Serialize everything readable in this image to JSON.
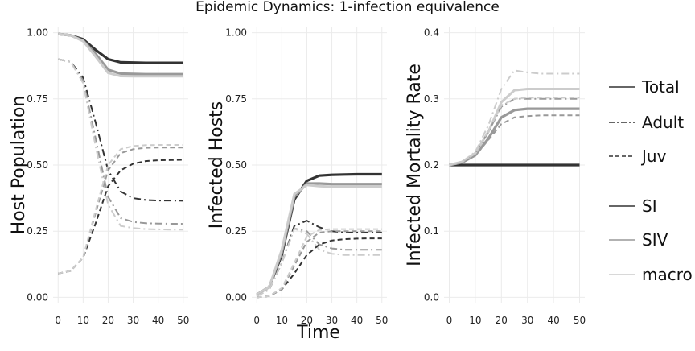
{
  "chart_data": {
    "type": "line",
    "title": "Epidemic Dynamics: 1-infection equivalence",
    "xlabel": "Time",
    "x_ticks": [
      0,
      10,
      20,
      30,
      40,
      50
    ],
    "xlim": [
      -2,
      52
    ],
    "legend": {
      "placement": "right",
      "linetype_entries": [
        {
          "label": "Total",
          "dash": "solid"
        },
        {
          "label": "Adult",
          "dash": "dashdot"
        },
        {
          "label": "Juv",
          "dash": "dashed"
        }
      ],
      "model_entries": [
        {
          "label": "SI",
          "color": "#333333"
        },
        {
          "label": "SIV",
          "color": "#999999"
        },
        {
          "label": "macro",
          "color": "#cccccc"
        }
      ]
    },
    "panels": [
      {
        "ylabel": "Host Population",
        "ylim": [
          -0.02,
          1.02
        ],
        "y_ticks": [
          0.0,
          0.25,
          0.5,
          0.75,
          1.0
        ],
        "y_tick_labels": [
          "0.00",
          "0.25",
          "0.50",
          "0.75",
          "1.00"
        ],
        "series": [
          {
            "model": "SI",
            "type": "Total",
            "x": [
              0,
              5,
              10,
              15,
              20,
              25,
              30,
              35,
              40,
              45,
              50
            ],
            "y": [
              0.995,
              0.99,
              0.975,
              0.935,
              0.9,
              0.888,
              0.887,
              0.886,
              0.886,
              0.886,
              0.886
            ]
          },
          {
            "model": "SIV",
            "type": "Total",
            "x": [
              0,
              5,
              10,
              15,
              20,
              25,
              30,
              35,
              40,
              45,
              50
            ],
            "y": [
              0.995,
              0.99,
              0.97,
              0.92,
              0.86,
              0.845,
              0.844,
              0.843,
              0.843,
              0.843,
              0.843
            ]
          },
          {
            "model": "macro",
            "type": "Total",
            "x": [
              0,
              5,
              10,
              15,
              20,
              25,
              30,
              35,
              40,
              45,
              50
            ],
            "y": [
              0.995,
              0.99,
              0.968,
              0.91,
              0.848,
              0.836,
              0.835,
              0.835,
              0.835,
              0.835,
              0.835
            ]
          },
          {
            "model": "SI",
            "type": "Adult",
            "x": [
              0,
              5,
              10,
              15,
              20,
              25,
              30,
              35,
              40,
              45,
              50
            ],
            "y": [
              0.9,
              0.89,
              0.83,
              0.66,
              0.48,
              0.4,
              0.375,
              0.368,
              0.366,
              0.366,
              0.365
            ]
          },
          {
            "model": "SIV",
            "type": "Adult",
            "x": [
              0,
              5,
              10,
              15,
              20,
              25,
              30,
              35,
              40,
              45,
              50
            ],
            "y": [
              0.9,
              0.89,
              0.82,
              0.6,
              0.38,
              0.3,
              0.285,
              0.28,
              0.279,
              0.278,
              0.278
            ]
          },
          {
            "model": "macro",
            "type": "Adult",
            "x": [
              0,
              5,
              10,
              15,
              20,
              25,
              30,
              35,
              40,
              45,
              50
            ],
            "y": [
              0.9,
              0.89,
              0.81,
              0.57,
              0.35,
              0.27,
              0.262,
              0.258,
              0.257,
              0.256,
              0.256
            ]
          },
          {
            "model": "SI",
            "type": "Juv",
            "x": [
              0,
              5,
              10,
              15,
              20,
              25,
              30,
              35,
              40,
              45,
              50
            ],
            "y": [
              0.09,
              0.1,
              0.15,
              0.28,
              0.42,
              0.48,
              0.505,
              0.515,
              0.518,
              0.519,
              0.52
            ]
          },
          {
            "model": "SIV",
            "type": "Juv",
            "x": [
              0,
              5,
              10,
              15,
              20,
              25,
              30,
              35,
              40,
              45,
              50
            ],
            "y": [
              0.09,
              0.1,
              0.15,
              0.32,
              0.48,
              0.545,
              0.56,
              0.565,
              0.566,
              0.566,
              0.566
            ]
          },
          {
            "model": "macro",
            "type": "Juv",
            "x": [
              0,
              5,
              10,
              15,
              20,
              25,
              30,
              35,
              40,
              45,
              50
            ],
            "y": [
              0.09,
              0.1,
              0.15,
              0.33,
              0.5,
              0.56,
              0.572,
              0.575,
              0.576,
              0.576,
              0.576
            ]
          }
        ]
      },
      {
        "ylabel": "Infected Hosts",
        "ylim": [
          -0.02,
          1.02
        ],
        "y_ticks": [
          0.0,
          0.25,
          0.5,
          0.75,
          1.0
        ],
        "y_tick_labels": [
          "0.00",
          "0.25",
          "0.50",
          "0.75",
          "1.00"
        ],
        "series": [
          {
            "model": "SI",
            "type": "Total",
            "x": [
              0,
              5,
              10,
              15,
              20,
              25,
              30,
              35,
              40,
              45,
              50
            ],
            "y": [
              0.01,
              0.04,
              0.16,
              0.37,
              0.44,
              0.46,
              0.463,
              0.464,
              0.465,
              0.465,
              0.465
            ]
          },
          {
            "model": "SIV",
            "type": "Total",
            "x": [
              0,
              5,
              10,
              15,
              20,
              25,
              30,
              35,
              40,
              45,
              50
            ],
            "y": [
              0.01,
              0.04,
              0.17,
              0.38,
              0.43,
              0.43,
              0.428,
              0.428,
              0.428,
              0.428,
              0.428
            ]
          },
          {
            "model": "macro",
            "type": "Total",
            "x": [
              0,
              5,
              10,
              15,
              20,
              25,
              30,
              35,
              40,
              45,
              50
            ],
            "y": [
              0.01,
              0.04,
              0.18,
              0.39,
              0.425,
              0.42,
              0.418,
              0.418,
              0.418,
              0.418,
              0.418
            ]
          },
          {
            "model": "SI",
            "type": "Adult",
            "x": [
              0,
              5,
              10,
              15,
              20,
              25,
              30,
              35,
              40,
              45,
              50
            ],
            "y": [
              0.005,
              0.03,
              0.13,
              0.27,
              0.29,
              0.265,
              0.25,
              0.245,
              0.245,
              0.245,
              0.245
            ]
          },
          {
            "model": "SIV",
            "type": "Adult",
            "x": [
              0,
              5,
              10,
              15,
              20,
              25,
              30,
              35,
              40,
              45,
              50
            ],
            "y": [
              0.005,
              0.03,
              0.13,
              0.26,
              0.25,
              0.2,
              0.185,
              0.18,
              0.18,
              0.18,
              0.18
            ]
          },
          {
            "model": "macro",
            "type": "Adult",
            "x": [
              0,
              5,
              10,
              15,
              20,
              25,
              30,
              35,
              40,
              45,
              50
            ],
            "y": [
              0.005,
              0.03,
              0.13,
              0.26,
              0.24,
              0.18,
              0.165,
              0.16,
              0.16,
              0.16,
              0.16
            ]
          },
          {
            "model": "SI",
            "type": "Juv",
            "x": [
              0,
              5,
              10,
              15,
              20,
              25,
              30,
              35,
              40,
              45,
              50
            ],
            "y": [
              0.0,
              0.005,
              0.03,
              0.09,
              0.16,
              0.2,
              0.215,
              0.22,
              0.222,
              0.223,
              0.223
            ]
          },
          {
            "model": "SIV",
            "type": "Juv",
            "x": [
              0,
              5,
              10,
              15,
              20,
              25,
              30,
              35,
              40,
              45,
              50
            ],
            "y": [
              0.0,
              0.005,
              0.03,
              0.12,
              0.21,
              0.245,
              0.25,
              0.25,
              0.25,
              0.25,
              0.25
            ]
          },
          {
            "model": "macro",
            "type": "Juv",
            "x": [
              0,
              5,
              10,
              15,
              20,
              25,
              30,
              35,
              40,
              45,
              50
            ],
            "y": [
              0.0,
              0.005,
              0.035,
              0.13,
              0.23,
              0.255,
              0.258,
              0.258,
              0.258,
              0.258,
              0.258
            ]
          }
        ]
      },
      {
        "ylabel": "Infected Mortality Rate",
        "ylim": [
          -0.008,
          0.408
        ],
        "y_ticks": [
          0.0,
          0.1,
          0.2,
          0.3,
          0.4
        ],
        "y_tick_labels": [
          "0.0",
          "0.1",
          "0.2",
          "0.3",
          "0.4"
        ],
        "series": [
          {
            "model": "SI",
            "type": "Total",
            "x": [
              0,
              10,
              20,
              30,
              40,
              50
            ],
            "y": [
              0.2,
              0.2,
              0.2,
              0.2,
              0.2,
              0.2
            ]
          },
          {
            "model": "SIV",
            "type": "Total",
            "x": [
              0,
              5,
              10,
              15,
              20,
              25,
              30,
              35,
              40,
              45,
              50
            ],
            "y": [
              0.2,
              0.204,
              0.215,
              0.24,
              0.272,
              0.283,
              0.285,
              0.285,
              0.285,
              0.285,
              0.285
            ]
          },
          {
            "model": "macro",
            "type": "Total",
            "x": [
              0,
              5,
              10,
              15,
              20,
              25,
              30,
              35,
              40,
              45,
              50
            ],
            "y": [
              0.2,
              0.205,
              0.218,
              0.25,
              0.295,
              0.313,
              0.315,
              0.315,
              0.315,
              0.315,
              0.315
            ]
          },
          {
            "model": "SIV",
            "type": "Adult",
            "x": [
              0,
              5,
              10,
              15,
              20,
              25,
              30,
              35,
              40,
              45,
              50
            ],
            "y": [
              0.2,
              0.205,
              0.218,
              0.25,
              0.288,
              0.3,
              0.3,
              0.3,
              0.3,
              0.3,
              0.3
            ]
          },
          {
            "model": "macro",
            "type": "Adult",
            "x": [
              0,
              5,
              10,
              15,
              20,
              25,
              30,
              35,
              40,
              45,
              50
            ],
            "y": [
              0.2,
              0.205,
              0.22,
              0.26,
              0.315,
              0.343,
              0.34,
              0.338,
              0.338,
              0.338,
              0.338
            ]
          },
          {
            "model": "SIV",
            "type": "Juv",
            "x": [
              0,
              5,
              10,
              15,
              20,
              25,
              30,
              35,
              40,
              45,
              50
            ],
            "y": [
              0.2,
              0.204,
              0.214,
              0.238,
              0.262,
              0.272,
              0.274,
              0.275,
              0.275,
              0.275,
              0.275
            ]
          },
          {
            "model": "macro",
            "type": "Juv",
            "x": [
              0,
              5,
              10,
              15,
              20,
              25,
              30,
              35,
              40,
              45,
              50
            ],
            "y": [
              0.2,
              0.205,
              0.218,
              0.252,
              0.29,
              0.3,
              0.302,
              0.302,
              0.302,
              0.302,
              0.302
            ]
          }
        ]
      }
    ]
  }
}
